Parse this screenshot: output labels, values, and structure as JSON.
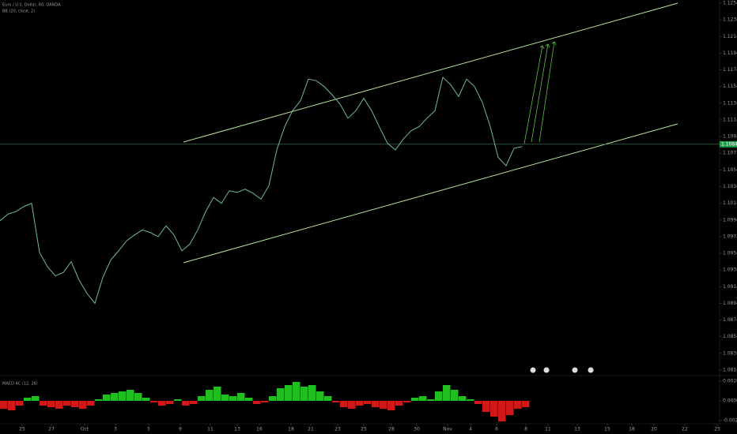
{
  "chart_data": [
    {
      "type": "line",
      "title": "Euro / U.S. Dollar, 60, OANDA",
      "subtitle": "BB (20, close, 2)",
      "color": "#6fb8a8",
      "values": [
        1.0993,
        1.1001,
        1.1004,
        1.101,
        1.1014,
        1.0955,
        1.0938,
        1.0927,
        1.0931,
        1.0944,
        1.0922,
        1.0906,
        1.0894,
        1.0925,
        1.0946,
        1.0957,
        1.0969,
        1.0976,
        1.0982,
        1.0979,
        1.0974,
        1.0987,
        1.0976,
        1.0957,
        1.0965,
        1.0982,
        1.1004,
        1.1021,
        1.1014,
        1.1029,
        1.1027,
        1.1031,
        1.1026,
        1.1019,
        1.1035,
        1.1078,
        1.1106,
        1.1125,
        1.1137,
        1.1163,
        1.1161,
        1.1154,
        1.1144,
        1.1133,
        1.1116,
        1.1125,
        1.114,
        1.1125,
        1.1105,
        1.1086,
        1.1078,
        1.1091,
        1.1101,
        1.1106,
        1.1116,
        1.1125,
        1.1165,
        1.1156,
        1.1142,
        1.1163,
        1.1154,
        1.1135,
        1.1106,
        1.1069,
        1.1059,
        1.108,
        1.1082
      ],
      "xlim": [
        0,
        91
      ],
      "xticks": [
        {
          "value": 2.8,
          "label": "25"
        },
        {
          "value": 6.5,
          "label": "27"
        },
        {
          "value": 10.7,
          "label": "Oct"
        },
        {
          "value": 14.6,
          "label": "3"
        },
        {
          "value": 18.8,
          "label": "5"
        },
        {
          "value": 22.8,
          "label": "9"
        },
        {
          "value": 26.6,
          "label": "11"
        },
        {
          "value": 30,
          "label": "13"
        },
        {
          "value": 32.8,
          "label": "16"
        },
        {
          "value": 36.8,
          "label": "18"
        },
        {
          "value": 39.3,
          "label": "21"
        },
        {
          "value": 42.7,
          "label": "23"
        },
        {
          "value": 46,
          "label": "25"
        },
        {
          "value": 49.5,
          "label": "28"
        },
        {
          "value": 52.7,
          "label": "30"
        },
        {
          "value": 56.6,
          "label": "Nov"
        },
        {
          "value": 59.5,
          "label": "4"
        },
        {
          "value": 62.8,
          "label": "6"
        },
        {
          "value": 66.5,
          "label": "8"
        },
        {
          "value": 69.3,
          "label": "11"
        },
        {
          "value": 73,
          "label": "13"
        },
        {
          "value": 76.8,
          "label": "15"
        },
        {
          "value": 79.9,
          "label": "18"
        },
        {
          "value": 82.7,
          "label": "20"
        },
        {
          "value": 86.6,
          "label": "22"
        },
        {
          "value": 90.7,
          "label": "25"
        }
      ],
      "ylim": [
        1.0814,
        1.1254
      ],
      "yticks": [
        {
          "value": 1.0814,
          "label": "1.08140"
        },
        {
          "value": 1.0834,
          "label": "1.08340"
        },
        {
          "value": 1.0854,
          "label": "1.08540"
        },
        {
          "value": 1.0874,
          "label": "1.08740"
        },
        {
          "value": 1.0894,
          "label": "1.08940"
        },
        {
          "value": 1.0914,
          "label": "1.09140"
        },
        {
          "value": 1.0934,
          "label": "1.09340"
        },
        {
          "value": 1.0954,
          "label": "1.09540"
        },
        {
          "value": 1.0974,
          "label": "1.09740"
        },
        {
          "value": 1.0994,
          "label": "1.09940"
        },
        {
          "value": 1.1014,
          "label": "1.10140"
        },
        {
          "value": 1.1034,
          "label": "1.10340"
        },
        {
          "value": 1.1054,
          "label": "1.10540"
        },
        {
          "value": 1.1074,
          "label": "1.10740"
        },
        {
          "value": 1.1094,
          "label": "1.10940"
        },
        {
          "value": 1.1114,
          "label": "1.11140"
        },
        {
          "value": 1.1134,
          "label": "1.11340"
        },
        {
          "value": 1.1154,
          "label": "1.11540"
        },
        {
          "value": 1.1174,
          "label": "1.11740"
        },
        {
          "value": 1.1194,
          "label": "1.11940"
        },
        {
          "value": 1.1214,
          "label": "1.12140"
        },
        {
          "value": 1.1234,
          "label": "1.12340"
        },
        {
          "value": 1.1254,
          "label": "1.12540"
        }
      ],
      "last_price": {
        "value": 1.10848,
        "label": "1.10848"
      },
      "last_price_color": "#1e9e4a"
    },
    {
      "type": "bar",
      "title": "MACD 4C (12, 26)",
      "colors": {
        "positive": "#1fbf1f",
        "negative": "#d01818"
      },
      "values": [
        -0.0008,
        -0.00096,
        -0.00048,
        0.00032,
        0.00048,
        -0.00048,
        -0.00064,
        -0.0008,
        -0.00048,
        -0.00064,
        -0.0008,
        -0.00048,
        0.00016,
        0.00064,
        0.0008,
        0.00096,
        0.00112,
        0.0008,
        0.00032,
        -0.00016,
        -0.00048,
        -0.00032,
        0.00016,
        -0.00048,
        -0.00032,
        0.00048,
        0.00112,
        0.00144,
        0.00064,
        0.00048,
        0.0008,
        0.00032,
        -0.00032,
        -0.00016,
        0.00048,
        0.00128,
        0.0016,
        0.00192,
        0.00144,
        0.0016,
        0.00096,
        0.00048,
        -0.00016,
        -0.00064,
        -0.0008,
        -0.00048,
        -0.00032,
        -0.00064,
        -0.0008,
        -0.00096,
        -0.00048,
        -0.00016,
        0.00032,
        0.00048,
        0.00016,
        0.00096,
        0.0016,
        0.00112,
        0.00048,
        0.00016,
        -0.00032,
        -0.00112,
        -0.0016,
        -0.00208,
        -0.00144,
        -0.0008,
        -0.00064
      ],
      "ylim": [
        -0.00232,
        0.00256
      ],
      "yticks": [
        {
          "value": 0.002,
          "label": "0.00200"
        },
        {
          "value": 0,
          "label": "0.00000"
        },
        {
          "value": -0.002,
          "label": "-0.00200"
        }
      ]
    }
  ]
}
